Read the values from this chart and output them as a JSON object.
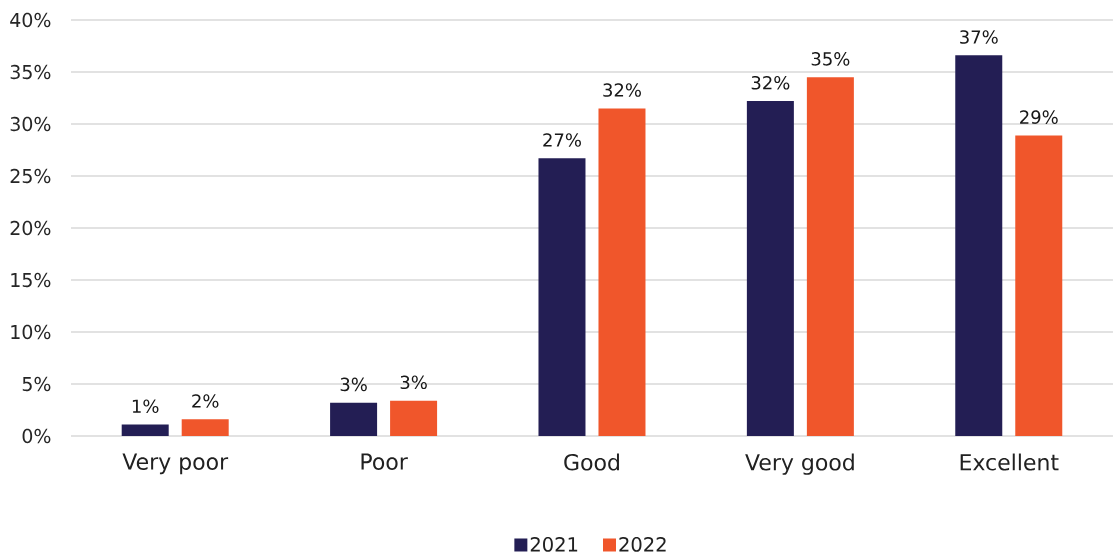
{
  "chart_data": {
    "type": "bar",
    "categories": [
      "Very poor",
      "Poor",
      "Good",
      "Very good",
      "Excellent"
    ],
    "series": [
      {
        "name": "2021",
        "color": "#231e54",
        "values": [
          1.1,
          3.2,
          26.7,
          32.2,
          36.6
        ],
        "value_labels": [
          "1%",
          "3%",
          "27%",
          "32%",
          "37%"
        ]
      },
      {
        "name": "2022",
        "color": "#f0562b",
        "values": [
          1.6,
          3.4,
          31.5,
          34.5,
          28.9
        ],
        "value_labels": [
          "2%",
          "3%",
          "32%",
          "35%",
          "29%"
        ]
      }
    ],
    "ylim": [
      0,
      40
    ],
    "yticks": [
      {
        "value": 0,
        "label": "0%"
      },
      {
        "value": 5,
        "label": "5%"
      },
      {
        "value": 10,
        "label": "10%"
      },
      {
        "value": 15,
        "label": "15%"
      },
      {
        "value": 20,
        "label": "20%"
      },
      {
        "value": 25,
        "label": "25%"
      },
      {
        "value": 30,
        "label": "30%"
      },
      {
        "value": 35,
        "label": "35%"
      },
      {
        "value": 40,
        "label": "40%"
      }
    ],
    "grid": "y",
    "legend": "bottom"
  }
}
